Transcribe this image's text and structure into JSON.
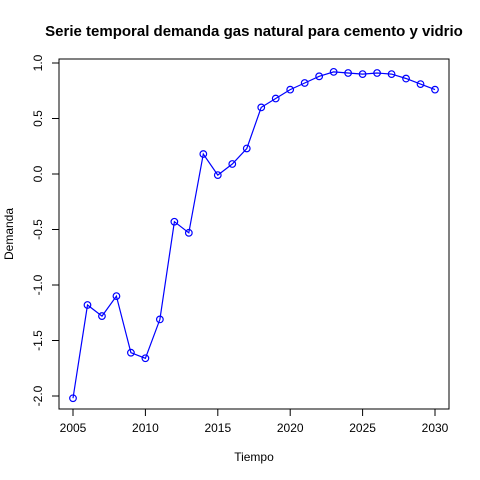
{
  "chart_data": {
    "type": "line",
    "title": "Serie temporal demanda gas natural para cemento y vidrio",
    "xlabel": "Tiempo",
    "ylabel": "Demanda",
    "xlim": [
      2005,
      2030
    ],
    "ylim": [
      -2.0,
      1.0
    ],
    "xticks": [
      2005,
      2010,
      2015,
      2020,
      2025,
      2030
    ],
    "yticks": [
      -2.0,
      -1.5,
      -1.0,
      -0.5,
      0.0,
      0.5,
      1.0
    ],
    "ytick_labels": [
      "-2.0",
      "-1.5",
      "-1.0",
      "-0.5",
      "0.0",
      "0.5",
      "1.0"
    ],
    "grid": false,
    "series_color": "#0000ff",
    "markers": "open-circle",
    "x": [
      2005,
      2006,
      2007,
      2008,
      2009,
      2010,
      2011,
      2012,
      2013,
      2014,
      2015,
      2016,
      2017,
      2018,
      2019,
      2020,
      2021,
      2022,
      2023,
      2024,
      2025,
      2026,
      2027,
      2028,
      2029,
      2030
    ],
    "y": [
      -2.02,
      -1.18,
      -1.28,
      -1.1,
      -1.61,
      -1.66,
      -1.31,
      -0.43,
      -0.53,
      0.18,
      -0.01,
      0.09,
      0.23,
      0.6,
      0.68,
      0.76,
      0.82,
      0.88,
      0.92,
      0.91,
      0.9,
      0.91,
      0.9,
      0.86,
      0.81,
      0.76
    ]
  }
}
